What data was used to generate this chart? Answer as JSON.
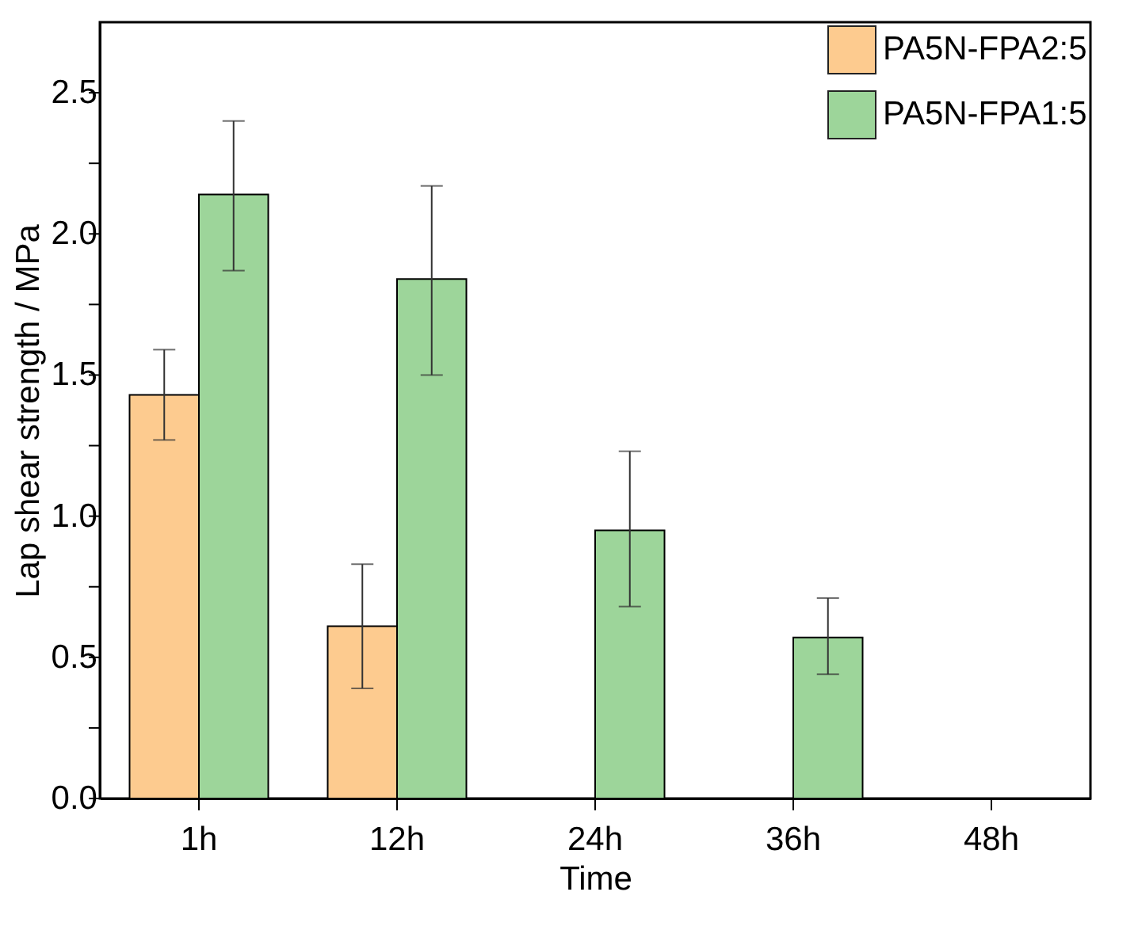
{
  "chart_data": {
    "type": "bar",
    "xlabel": "Time",
    "ylabel": "Lap shear strength / MPa",
    "categories": [
      "1h",
      "12h",
      "24h",
      "36h",
      "48h"
    ],
    "series": [
      {
        "name": "PA5N-FPA2:5",
        "color": "#fdcb8f",
        "values": [
          1.43,
          0.61,
          null,
          null,
          null
        ],
        "errors": [
          [
            1.27,
            1.59
          ],
          [
            0.39,
            0.83
          ],
          null,
          null,
          null
        ]
      },
      {
        "name": "PA5N-FPA1:5",
        "color": "#9dd59a",
        "values": [
          2.14,
          1.84,
          0.95,
          0.57,
          null
        ],
        "errors": [
          [
            1.87,
            2.4
          ],
          [
            1.5,
            2.17
          ],
          [
            0.68,
            1.23
          ],
          [
            0.44,
            0.71
          ],
          null
        ]
      }
    ],
    "ylim": [
      0,
      2.75
    ],
    "yticks": [
      {
        "value": 0,
        "label": "0.0"
      },
      {
        "value": 0.25,
        "label": null
      },
      {
        "value": 0.5,
        "label": "0.5"
      },
      {
        "value": 0.75,
        "label": null
      },
      {
        "value": 1,
        "label": "1.0"
      },
      {
        "value": 1.25,
        "label": null
      },
      {
        "value": 1.5,
        "label": "1.5"
      },
      {
        "value": 1.75,
        "label": null
      },
      {
        "value": 2,
        "label": "2.0"
      },
      {
        "value": 2.25,
        "label": null
      },
      {
        "value": 2.5,
        "label": "2.5"
      }
    ],
    "legend": "top right",
    "grid": false
  }
}
